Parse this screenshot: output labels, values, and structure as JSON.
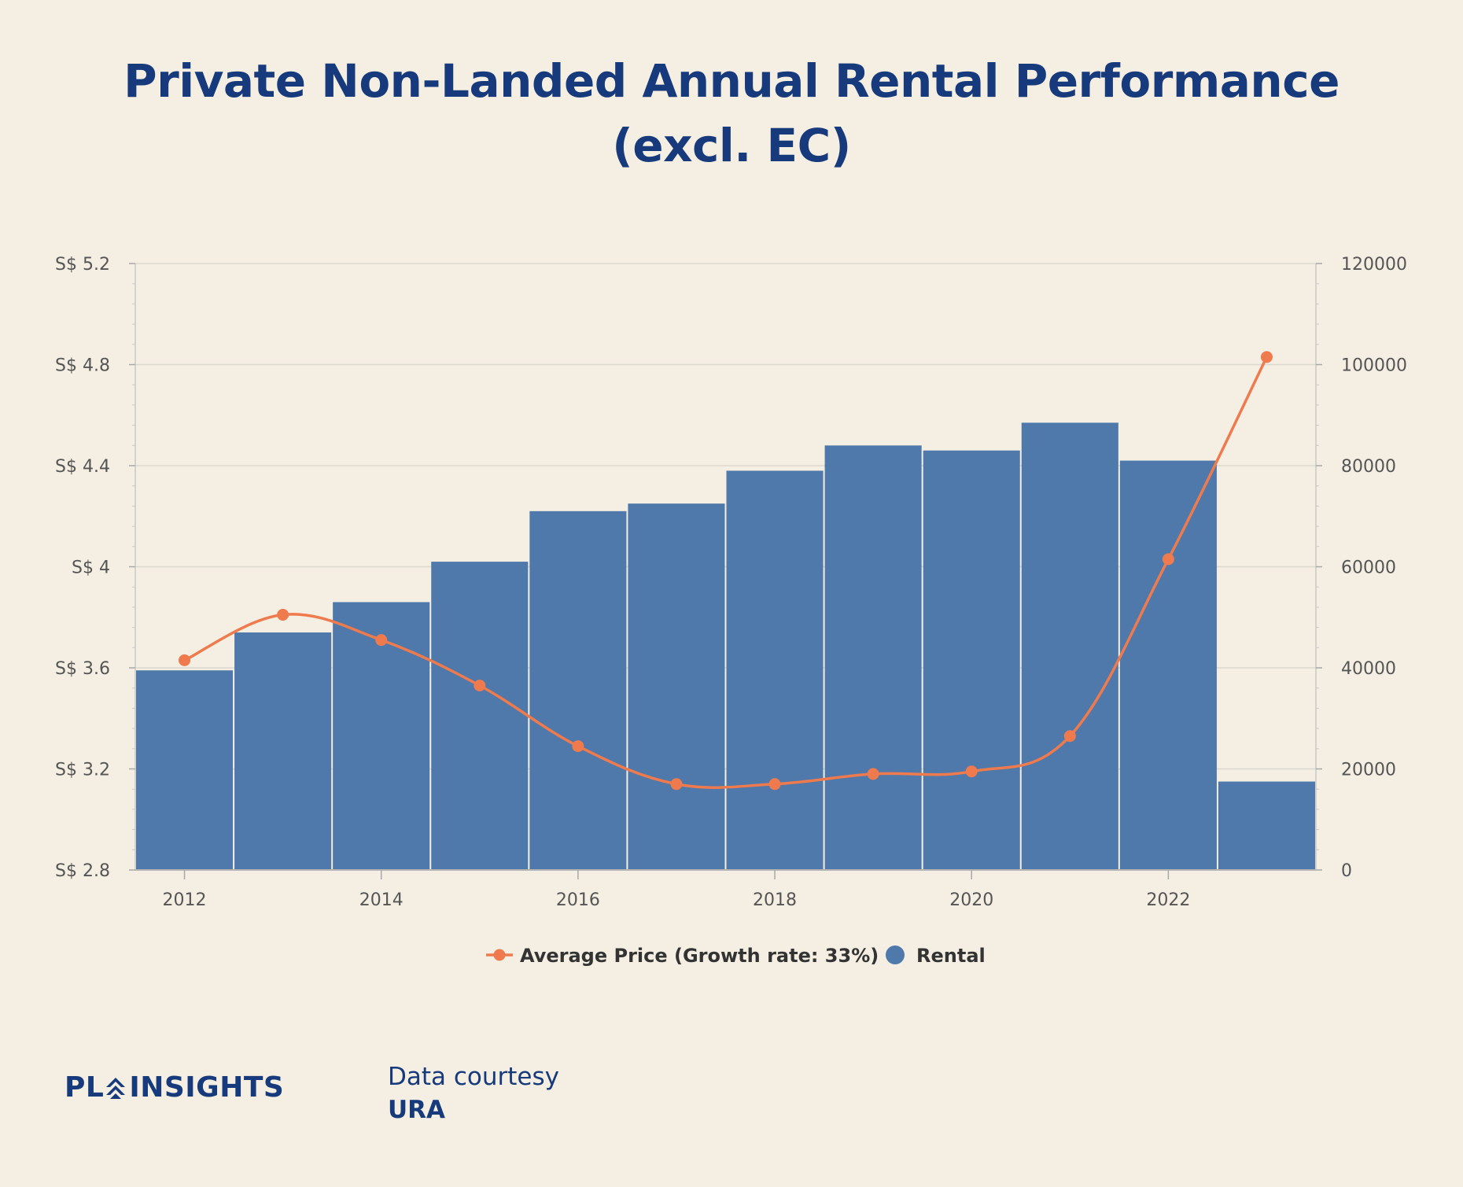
{
  "title_line1": "Private Non-Landed Annual Rental Performance",
  "title_line2": "(excl. EC)",
  "logo": {
    "prefix": "PL",
    "suffix": "INSIGHTS"
  },
  "courtesy": {
    "line1": "Data courtesy",
    "line2": "URA"
  },
  "colors": {
    "bar": "#4e79aa",
    "line": "#ee7a4d",
    "title": "#163a7c",
    "background": "#f5efe3"
  },
  "chart_data": {
    "type": "bar",
    "x": [
      2012,
      2013,
      2014,
      2015,
      2016,
      2017,
      2018,
      2019,
      2020,
      2021,
      2022,
      2023
    ],
    "x_tick_labels": [
      "2012",
      "2014",
      "2016",
      "2018",
      "2020",
      "2022"
    ],
    "y_left_tick_labels": [
      "S$ 2.8",
      "S$ 3.2",
      "S$ 3.6",
      "S$ 4",
      "S$ 4.4",
      "S$ 4.8",
      "S$ 5.2"
    ],
    "y_left_ticks": [
      2.8,
      3.2,
      3.6,
      4.0,
      4.4,
      4.8,
      5.2
    ],
    "y_left_range": [
      2.8,
      5.2
    ],
    "y_right_tick_labels": [
      "0",
      "20000",
      "40000",
      "60000",
      "80000",
      "100000",
      "120000"
    ],
    "y_right_ticks": [
      0,
      20000,
      40000,
      60000,
      80000,
      100000,
      120000
    ],
    "y_right_range": [
      0,
      120000
    ],
    "grid": true,
    "legend_position": "bottom-center",
    "series": [
      {
        "name": "Average Price (Growth rate: 33%)",
        "type": "line",
        "axis": "left",
        "values": [
          3.63,
          3.81,
          3.71,
          3.53,
          3.29,
          3.14,
          3.14,
          3.18,
          3.19,
          3.33,
          4.03,
          4.83
        ]
      },
      {
        "name": "Rental",
        "type": "bar",
        "axis": "right",
        "values": [
          39500,
          47000,
          53000,
          61000,
          71000,
          72500,
          79000,
          84000,
          83000,
          88500,
          81000,
          17500
        ]
      }
    ]
  }
}
